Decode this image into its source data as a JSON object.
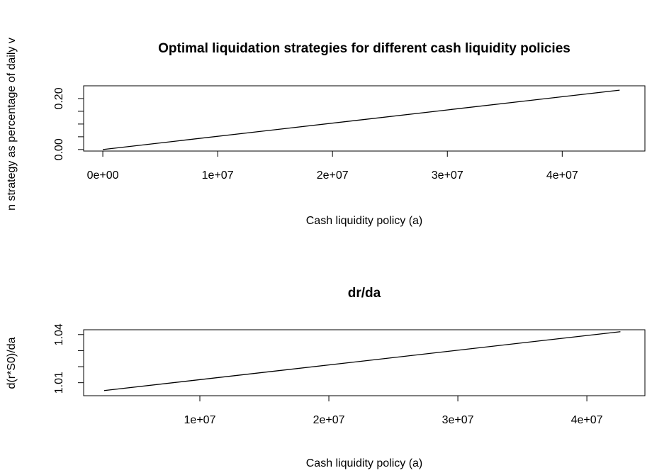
{
  "chart_data": [
    {
      "type": "line",
      "title": "Optimal liquidation strategies for different cash liquidity policies",
      "x_label": "Cash liquidity policy (a)",
      "y_label": "n strategy as percentage of daily v",
      "x": [
        0,
        45000000
      ],
      "series": [
        {
          "color": "#000000",
          "values": [
            0,
            0.233
          ]
        }
      ],
      "xlim": [
        -1670000,
        47200000
      ],
      "ylim": [
        -0.006,
        0.25
      ],
      "xticks": [
        {
          "value": 0,
          "label": "0e+00"
        },
        {
          "value": 10000000,
          "label": "1e+07"
        },
        {
          "value": 20000000,
          "label": "2e+07"
        },
        {
          "value": 30000000,
          "label": "3e+07"
        },
        {
          "value": 40000000,
          "label": "4e+07"
        }
      ],
      "yticks": [
        {
          "value": 0,
          "label": "0.00"
        },
        {
          "value": 0.05,
          "label": null
        },
        {
          "value": 0.1,
          "label": null
        },
        {
          "value": 0.15,
          "label": null
        },
        {
          "value": 0.2,
          "label": "0.20"
        }
      ]
    },
    {
      "type": "line",
      "title": "dr/da",
      "x_label": "Cash liquidity policy (a)",
      "y_label": "d(r*S0)/da",
      "x": [
        2580000,
        42600000
      ],
      "series": [
        {
          "color": "#000000",
          "values": [
            1.0051,
            1.0418
          ]
        }
      ],
      "xlim": [
        990000,
        44500000
      ],
      "ylim": [
        1.0019,
        1.043
      ],
      "xticks": [
        {
          "value": 10000000,
          "label": "1e+07"
        },
        {
          "value": 20000000,
          "label": "2e+07"
        },
        {
          "value": 30000000,
          "label": "3e+07"
        },
        {
          "value": 40000000,
          "label": "4e+07"
        }
      ],
      "yticks": [
        {
          "value": 1.01,
          "label": "1.01"
        },
        {
          "value": 1.02,
          "label": null
        },
        {
          "value": 1.03,
          "label": null
        },
        {
          "value": 1.04,
          "label": "1.04"
        }
      ]
    }
  ]
}
